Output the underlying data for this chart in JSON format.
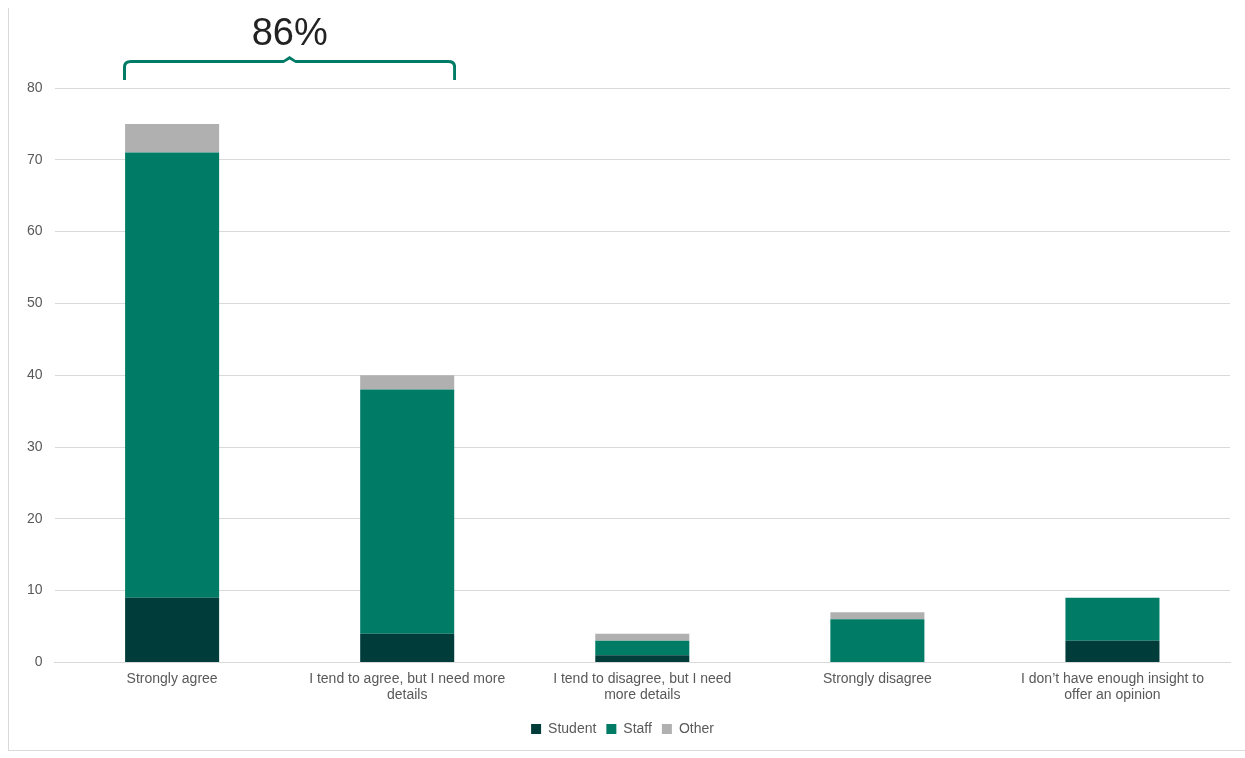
{
  "chart_data": {
    "type": "bar",
    "stacked": true,
    "categories": [
      "Strongly agree",
      "I tend to agree, but I need more details",
      "I tend to disagree, but I need more details",
      "Strongly disagree",
      "I don’t have enough insight to offer an opinion"
    ],
    "series": [
      {
        "name": "Student",
        "color": "#003c3a",
        "values": [
          9,
          4,
          1,
          0,
          3
        ]
      },
      {
        "name": "Staff",
        "color": "#007c66",
        "values": [
          62,
          34,
          2,
          6,
          6
        ]
      },
      {
        "name": "Other",
        "color": "#b0b0b0",
        "values": [
          4,
          2,
          1,
          1,
          0
        ]
      }
    ],
    "ylim": [
      0,
      80
    ],
    "yticks": [
      0,
      10,
      20,
      30,
      40,
      50,
      60,
      70,
      80
    ],
    "grid": "y",
    "legend": "bottom",
    "annotations": [
      "86%"
    ]
  }
}
